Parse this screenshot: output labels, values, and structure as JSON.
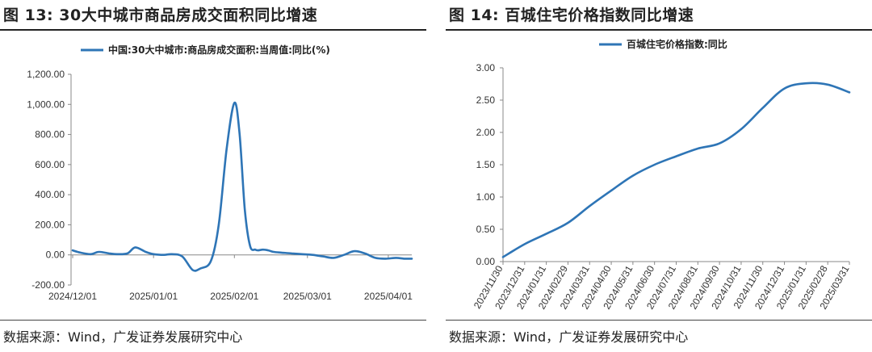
{
  "left": {
    "fig_label": "图 13:",
    "fig_title": "30大中城市商品房成交面积同比增速",
    "source": "数据来源：Wind，广发证券发展研究中心",
    "color": "#2e75b6",
    "chart_data": {
      "type": "line",
      "title": "30大中城市商品房成交面积同比增速",
      "legend": "中国:30大中城市:商品房成交面积:当周值:同比(%)",
      "xlabel": "",
      "ylabel": "",
      "ylim": [
        -200,
        1200
      ],
      "yticks": [
        -200,
        0,
        200,
        400,
        600,
        800,
        1000,
        1200
      ],
      "ytick_labels": [
        "-200.00",
        "0.00",
        "200.00",
        "400.00",
        "600.00",
        "800.00",
        "1,000.00",
        "1,200.00"
      ],
      "xlim": [
        0,
        130
      ],
      "xticks": [
        0,
        31,
        62,
        90,
        121
      ],
      "xtick_labels": [
        "2024/12/01",
        "2025/01/01",
        "2025/02/01",
        "2025/03/01",
        "2025/04/01"
      ],
      "x": [
        0,
        3,
        7,
        10,
        14,
        17,
        21,
        24,
        28,
        31,
        35,
        38,
        42,
        46,
        49,
        53,
        56,
        59,
        62,
        64,
        66,
        68,
        70,
        71,
        73,
        75,
        77,
        80,
        84,
        88,
        92,
        96,
        100,
        104,
        108,
        112,
        116,
        120,
        124,
        127,
        130
      ],
      "values": [
        30,
        15,
        5,
        20,
        10,
        5,
        10,
        50,
        20,
        5,
        0,
        5,
        -10,
        -100,
        -90,
        -40,
        200,
        700,
        1010,
        800,
        300,
        60,
        35,
        30,
        35,
        30,
        20,
        15,
        10,
        5,
        0,
        -10,
        -20,
        0,
        25,
        10,
        -20,
        -25,
        -20,
        -25,
        -25
      ]
    }
  },
  "right": {
    "fig_label": "图 14:",
    "fig_title": "百城住宅价格指数同比增速",
    "source": "数据来源：Wind，广发证券发展研究中心",
    "color": "#2e75b6",
    "chart_data": {
      "type": "line",
      "title": "百城住宅价格指数同比增速",
      "legend": "百城住宅价格指数:同比",
      "xlabel": "",
      "ylabel": "",
      "ylim": [
        0,
        3
      ],
      "yticks": [
        0,
        0.5,
        1,
        1.5,
        2,
        2.5,
        3
      ],
      "ytick_labels": [
        "0.00",
        "0.50",
        "1.00",
        "1.50",
        "2.00",
        "2.50",
        "3.00"
      ],
      "categories": [
        "2023/11/30",
        "2023/12/31",
        "2024/01/31",
        "2024/02/29",
        "2024/03/31",
        "2024/04/30",
        "2024/05/31",
        "2024/06/30",
        "2024/07/31",
        "2024/08/31",
        "2024/09/30",
        "2024/10/31",
        "2024/11/30",
        "2024/12/31",
        "2025/01/31",
        "2025/02/28",
        "2025/03/31"
      ],
      "values": [
        0.07,
        0.27,
        0.43,
        0.6,
        0.86,
        1.1,
        1.33,
        1.5,
        1.63,
        1.75,
        1.83,
        2.05,
        2.38,
        2.68,
        2.76,
        2.74,
        2.62
      ]
    }
  }
}
